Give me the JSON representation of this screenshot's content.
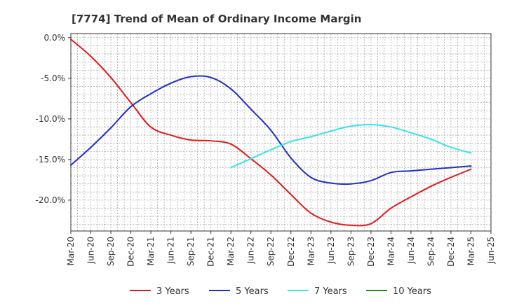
{
  "chart_data": {
    "type": "line",
    "title": "[7774]  Trend of Mean of Ordinary Income Margin",
    "xlabel": "",
    "ylabel": "",
    "x_ticks": [
      "Mar-20",
      "Jun-20",
      "Sep-20",
      "Dec-20",
      "Mar-21",
      "Jun-21",
      "Sep-21",
      "Dec-21",
      "Mar-22",
      "Jun-22",
      "Sep-22",
      "Dec-22",
      "Mar-23",
      "Jun-23",
      "Sep-23",
      "Dec-23",
      "Mar-24",
      "Jun-24",
      "Sep-24",
      "Dec-24",
      "Mar-25",
      "Jun-25"
    ],
    "y_ticks": [
      "0.0%",
      "-5.0%",
      "-10.0%",
      "-15.0%",
      "-20.0%"
    ],
    "y_tick_values": [
      0,
      -5,
      -10,
      -15,
      -20
    ],
    "ylim": [
      -23.8,
      0.5
    ],
    "grid": true,
    "legend_position": "bottom",
    "series": [
      {
        "name": "3 Years",
        "color": "#e31a1c",
        "x": [
          "Mar-20",
          "Jun-20",
          "Sep-20",
          "Dec-20",
          "Mar-21",
          "Jun-21",
          "Sep-21",
          "Dec-21",
          "Mar-22",
          "Jun-22",
          "Sep-22",
          "Dec-22",
          "Mar-23",
          "Jun-23",
          "Sep-23",
          "Dec-23",
          "Mar-24",
          "Jun-24",
          "Sep-24",
          "Dec-24",
          "Mar-25"
        ],
        "values": [
          -0.2,
          -2.3,
          -4.9,
          -8.0,
          -11.0,
          -12.0,
          -12.6,
          -12.7,
          -13.1,
          -14.9,
          -16.9,
          -19.3,
          -21.6,
          -22.7,
          -23.1,
          -22.9,
          -21.0,
          -19.6,
          -18.3,
          -17.2,
          -16.2
        ]
      },
      {
        "name": "5 Years",
        "color": "#1f2ecc",
        "x": [
          "Mar-20",
          "Jun-20",
          "Sep-20",
          "Dec-20",
          "Mar-21",
          "Jun-21",
          "Sep-21",
          "Dec-21",
          "Mar-22",
          "Jun-22",
          "Sep-22",
          "Dec-22",
          "Mar-23",
          "Jun-23",
          "Sep-23",
          "Dec-23",
          "Mar-24",
          "Jun-24",
          "Sep-24",
          "Dec-24",
          "Mar-25"
        ],
        "values": [
          -15.7,
          -13.5,
          -11.1,
          -8.5,
          -6.9,
          -5.6,
          -4.8,
          -4.9,
          -6.3,
          -8.8,
          -11.4,
          -14.8,
          -17.2,
          -17.9,
          -18.0,
          -17.6,
          -16.6,
          -16.4,
          -16.2,
          -16.0,
          -15.8
        ]
      },
      {
        "name": "7 Years",
        "color": "#33e5e5",
        "x": [
          "Mar-22",
          "Jun-22",
          "Sep-22",
          "Dec-22",
          "Mar-23",
          "Jun-23",
          "Sep-23",
          "Dec-23",
          "Mar-24",
          "Jun-24",
          "Sep-24",
          "Dec-24",
          "Mar-25"
        ],
        "values": [
          -16.0,
          -14.9,
          -13.8,
          -12.8,
          -12.2,
          -11.5,
          -10.9,
          -10.7,
          -11.0,
          -11.7,
          -12.5,
          -13.5,
          -14.2
        ]
      },
      {
        "name": "10 Years",
        "color": "#1f8a1f",
        "x": [
          "Mar-25"
        ],
        "values": [
          -15.9
        ]
      }
    ]
  }
}
